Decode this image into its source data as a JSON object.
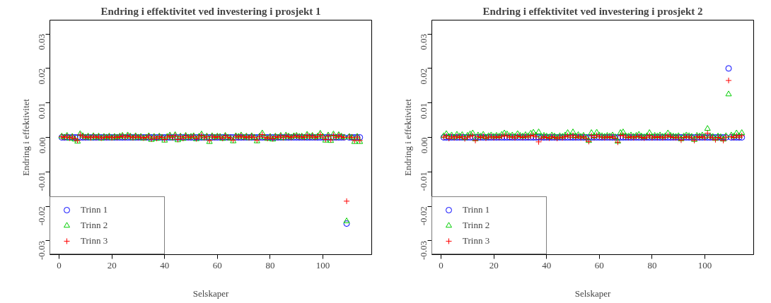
{
  "chart_data": [
    {
      "type": "scatter",
      "title": "Endring i effektivitet ved investering i prosjekt 1",
      "xlabel": "Selskaper",
      "ylabel": "Endring i effektivitet",
      "xlim": [
        -3.5,
        118.5
      ],
      "ylim": [
        -0.034,
        0.034
      ],
      "xticks": [
        0,
        20,
        40,
        60,
        80,
        100
      ],
      "yticks": [
        -0.03,
        -0.02,
        -0.01,
        {
          "value": 0,
          "label": "0.00"
        },
        0.01,
        0.02,
        0.03
      ],
      "grid": false,
      "legend": "bottom left",
      "x": [
        1,
        2,
        3,
        4,
        5,
        6,
        7,
        8,
        9,
        10,
        11,
        12,
        13,
        14,
        15,
        16,
        17,
        18,
        19,
        20,
        21,
        22,
        23,
        24,
        25,
        26,
        27,
        28,
        29,
        30,
        31,
        32,
        33,
        34,
        35,
        36,
        37,
        38,
        39,
        40,
        41,
        42,
        43,
        44,
        45,
        46,
        47,
        48,
        49,
        50,
        51,
        52,
        53,
        54,
        55,
        56,
        57,
        58,
        59,
        60,
        61,
        62,
        63,
        64,
        65,
        66,
        67,
        68,
        69,
        70,
        71,
        72,
        73,
        74,
        75,
        76,
        77,
        78,
        79,
        80,
        81,
        82,
        83,
        84,
        85,
        86,
        87,
        88,
        89,
        90,
        91,
        92,
        93,
        94,
        95,
        96,
        97,
        98,
        99,
        100,
        101,
        102,
        103,
        104,
        105,
        106,
        107,
        108,
        109,
        110,
        111,
        112,
        113,
        114
      ],
      "series": [
        {
          "name": "Trinn 1",
          "color": "#0000ff",
          "marker": "circle",
          "values": [
            0,
            0,
            0,
            0,
            0,
            0,
            0,
            0,
            0,
            0,
            0,
            0,
            0,
            0,
            0,
            0,
            0,
            0,
            0,
            0,
            0,
            0,
            0,
            0,
            0,
            0,
            0,
            0,
            0,
            0,
            0,
            0,
            0,
            0,
            0,
            0,
            0,
            0,
            0,
            0,
            0,
            0,
            0,
            0,
            0,
            0,
            0,
            0,
            0,
            0,
            0,
            0,
            0,
            0,
            0,
            0,
            0,
            0,
            0,
            0,
            0,
            0,
            0,
            0,
            0,
            0,
            0,
            0,
            0,
            0,
            0,
            0,
            0,
            0,
            0,
            0,
            0,
            0,
            0,
            0,
            0,
            0,
            0,
            0,
            0,
            0,
            0,
            0,
            0,
            0,
            0,
            0,
            0,
            0,
            0,
            0,
            0,
            0,
            0,
            0,
            0,
            0,
            0,
            0,
            0,
            0,
            0,
            0,
            -0.025,
            0,
            0,
            0,
            0,
            0
          ]
        },
        {
          "name": "Trinn 2",
          "color": "#00cd00",
          "marker": "triangle",
          "values": [
            0.0003,
            0,
            0.0005,
            -0.0003,
            0.0002,
            -0.0006,
            -0.0012,
            0.001,
            0.0004,
            0,
            0.0003,
            -0.0002,
            0.0004,
            0,
            0.0003,
            -0.0003,
            0.0002,
            0,
            0.0003,
            -0.0002,
            0.0002,
            0,
            0.0003,
            0.0005,
            0,
            0.0006,
            0.0003,
            -0.0002,
            0.0004,
            0,
            0.0002,
            -0.0003,
            0,
            0.0004,
            -0.0007,
            0.0002,
            -0.0004,
            0.0003,
            0,
            -0.0009,
            0.0002,
            0.0006,
            -0.0002,
            0.0007,
            -0.0008,
            0.0003,
            -0.0004,
            0.0005,
            0,
            0.0002,
            0.0004,
            -0.0005,
            0.0002,
            0.0009,
            -0.0002,
            0.0003,
            -0.0013,
            0.0004,
            0,
            0.0003,
            0.0002,
            -0.0004,
            0.0005,
            0,
            -0.0003,
            -0.0011,
            0.0004,
            0.0002,
            0.0006,
            0,
            0.0003,
            -0.0002,
            0.0004,
            0,
            -0.0011,
            0.0003,
            0.0012,
            0,
            -0.0004,
            0.0002,
            -0.0006,
            0.0003,
            0,
            0.0005,
            -0.0002,
            0.0006,
            0.0003,
            0,
            0.0004,
            0.0005,
            0.0002,
            0.0003,
            0,
            0.0008,
            0.0002,
            0.0005,
            0,
            0.0003,
            0.0011,
            0.0002,
            -0.0009,
            0.0006,
            -0.001,
            0.0009,
            0,
            0.0007,
            0.0003,
            0,
            -0.0243,
            0.0002,
            0,
            -0.0013,
            0.0002,
            -0.0013
          ]
        },
        {
          "name": "Trinn 3",
          "color": "#ff0000",
          "marker": "cross",
          "values": [
            0.0002,
            0,
            0.0003,
            -0.0002,
            0.0001,
            -0.0004,
            -0.0009,
            0.0007,
            0.0003,
            0,
            0.0002,
            -0.0001,
            0.0003,
            0,
            0.0002,
            -0.0002,
            0.0001,
            0,
            0.0002,
            -0.0001,
            0.0001,
            0,
            0.0002,
            0.0004,
            0,
            0.0004,
            0.0002,
            -0.0001,
            0.0003,
            0,
            0.0001,
            -0.0002,
            0,
            0.0003,
            -0.0005,
            0.0001,
            -0.0003,
            0.0002,
            0,
            -0.0006,
            0.0001,
            0.0004,
            -0.0001,
            0.0005,
            -0.0006,
            0.0002,
            -0.0003,
            0.0004,
            0,
            0.0001,
            0.0003,
            -0.0004,
            0.0001,
            0.0006,
            -0.0001,
            0.0002,
            -0.0009,
            0.0003,
            0,
            0.0002,
            0.0001,
            -0.0003,
            0.0004,
            0,
            -0.0002,
            -0.0008,
            0.0003,
            0.0001,
            0.0004,
            0,
            0.0002,
            -0.0001,
            0.0003,
            0,
            -0.0008,
            0.0002,
            0.0008,
            0,
            -0.0003,
            0.0001,
            -0.0004,
            0.0002,
            0,
            0.0004,
            -0.0001,
            0.0004,
            0.0002,
            0,
            0.0003,
            0.0004,
            0.0001,
            0.0002,
            0,
            0.0006,
            0.0001,
            0.0004,
            0,
            0.0002,
            0.0008,
            0.0001,
            -0.0006,
            0.0004,
            -0.0007,
            0.0006,
            0,
            0.0005,
            0.0002,
            0,
            -0.0185,
            0.0001,
            0,
            -0.0009,
            0.0001,
            -0.0009
          ]
        }
      ]
    },
    {
      "type": "scatter",
      "title": "Endring i effektivitet ved investering i prosjekt 2",
      "xlabel": "Selskaper",
      "ylabel": "Endring i effektivitet",
      "xlim": [
        -3.5,
        118.5
      ],
      "ylim": [
        -0.034,
        0.034
      ],
      "xticks": [
        0,
        20,
        40,
        60,
        80,
        100
      ],
      "yticks": [
        -0.03,
        -0.02,
        -0.01,
        {
          "value": 0,
          "label": "0.00"
        },
        0.01,
        0.02,
        0.03
      ],
      "grid": false,
      "legend": "bottom left",
      "x": [
        1,
        2,
        3,
        4,
        5,
        6,
        7,
        8,
        9,
        10,
        11,
        12,
        13,
        14,
        15,
        16,
        17,
        18,
        19,
        20,
        21,
        22,
        23,
        24,
        25,
        26,
        27,
        28,
        29,
        30,
        31,
        32,
        33,
        34,
        35,
        36,
        37,
        38,
        39,
        40,
        41,
        42,
        43,
        44,
        45,
        46,
        47,
        48,
        49,
        50,
        51,
        52,
        53,
        54,
        55,
        56,
        57,
        58,
        59,
        60,
        61,
        62,
        63,
        64,
        65,
        66,
        67,
        68,
        69,
        70,
        71,
        72,
        73,
        74,
        75,
        76,
        77,
        78,
        79,
        80,
        81,
        82,
        83,
        84,
        85,
        86,
        87,
        88,
        89,
        90,
        91,
        92,
        93,
        94,
        95,
        96,
        97,
        98,
        99,
        100,
        101,
        102,
        103,
        104,
        105,
        106,
        107,
        108,
        109,
        110,
        111,
        112,
        113,
        114
      ],
      "series": [
        {
          "name": "Trinn 1",
          "color": "#0000ff",
          "marker": "circle",
          "values": [
            0,
            0,
            0,
            0,
            0,
            0,
            0,
            0,
            0,
            0,
            0,
            0,
            0,
            0,
            0,
            0,
            0,
            0,
            0,
            0,
            0,
            0,
            0,
            0,
            0,
            0,
            0,
            0,
            0,
            0,
            0,
            0,
            0,
            0,
            0,
            0,
            0,
            0,
            0,
            0,
            0,
            0,
            0,
            0,
            0,
            0,
            0,
            0,
            0,
            0,
            0,
            0,
            0,
            0,
            0,
            0,
            0,
            0,
            0,
            0,
            0,
            0,
            0,
            0,
            0,
            0,
            0,
            0,
            0,
            0,
            0,
            0,
            0,
            0,
            0,
            0,
            0,
            0,
            0,
            0,
            0,
            0,
            0,
            0,
            0,
            0,
            0,
            0,
            0,
            0,
            0,
            0,
            0,
            0,
            0,
            0,
            0,
            0,
            0,
            0,
            0,
            0,
            0,
            0,
            0,
            0,
            0,
            0,
            0.02,
            0,
            0,
            0,
            0,
            0
          ]
        },
        {
          "name": "Trinn 2",
          "color": "#00cd00",
          "marker": "triangle",
          "values": [
            0.0004,
            0.001,
            0.0002,
            0.0006,
            0,
            0.0008,
            0.0003,
            0.0007,
            -0.0002,
            0.0005,
            0.0009,
            0.0012,
            -0.0005,
            0.0006,
            0.0003,
            0.0008,
            0,
            0.0004,
            0.0006,
            0.0002,
            0.0005,
            0.0003,
            0.0008,
            0.0012,
            0.0009,
            0.0004,
            0.0006,
            0.0002,
            0.001,
            0.0005,
            0.0003,
            0.0007,
            0.0004,
            0.0011,
            0.0014,
            0.0006,
            0.0015,
            0.0002,
            0.0005,
            0.0003,
            0.0001,
            0.0006,
            0.0003,
            0,
            0.0004,
            0.0002,
            0.0006,
            0.0013,
            0.0004,
            0.0015,
            0.0003,
            0.0007,
            0.0002,
            0.0005,
            0,
            -0.001,
            0.0013,
            0.0003,
            0.0014,
            0.0006,
            0.0004,
            0.0002,
            0.0005,
            0.0003,
            0.0006,
            0.0001,
            -0.0012,
            0.0013,
            0.0015,
            0.0004,
            0.0003,
            0.0006,
            0.0002,
            0.0005,
            0.0008,
            0.0003,
            0.0001,
            0.0004,
            0.0013,
            0.0002,
            0.0005,
            0.0003,
            0.0006,
            0.0002,
            0.0004,
            0.0012,
            0.0005,
            0.0003,
            0.0002,
            0.0004,
            -0.0005,
            0.0003,
            0.0006,
            0.0004,
            0.0002,
            -0.0007,
            0.0005,
            0.0003,
            0.0006,
            0.0002,
            0.0025,
            0.0004,
            0.0002,
            -0.0004,
            0.0003,
            0.0001,
            -0.0006,
            0.0004,
            0.0125,
            0.0006,
            0.0003,
            0.0012,
            0.0004,
            0.0013
          ]
        },
        {
          "name": "Trinn 3",
          "color": "#ff0000",
          "marker": "cross",
          "values": [
            0.0001,
            0.0004,
            -0.0003,
            0.0002,
            -0.0001,
            0.0003,
            0,
            0.0002,
            -0.0004,
            0.0001,
            0.0003,
            0.0005,
            -0.0009,
            0.0002,
            0,
            0.0003,
            -0.0002,
            0.0001,
            0.0002,
            -0.0001,
            0.0002,
            0,
            0.0003,
            0.0005,
            0.0004,
            0.0001,
            0.0002,
            -0.0001,
            0.0004,
            0.0002,
            0,
            0.0003,
            0.0001,
            0.0004,
            0.0006,
            0.0002,
            -0.0013,
            -0.0002,
            0.0002,
            0,
            -0.0002,
            0.0002,
            0,
            -0.0003,
            0.0001,
            -0.0001,
            0.0002,
            0.0005,
            0.0001,
            0.0006,
            0,
            0.0003,
            -0.0001,
            0.0002,
            -0.0003,
            -0.0012,
            0.0005,
            0,
            0.0006,
            0.0002,
            0.0001,
            -0.0001,
            0.0002,
            0,
            0.0002,
            -0.0002,
            -0.0014,
            0.0005,
            0.0006,
            0.0001,
            0,
            0.0002,
            -0.0001,
            0.0002,
            0.0003,
            0,
            -0.0002,
            0.0001,
            0.0005,
            -0.0001,
            0.0002,
            0,
            0.0002,
            -0.0001,
            0.0001,
            0.0005,
            0.0002,
            0,
            -0.0001,
            0.0001,
            -0.0008,
            0,
            0.0002,
            0.0001,
            -0.0001,
            -0.0009,
            0.0002,
            0,
            0.0002,
            -0.0001,
            0.0012,
            0.0001,
            -0.0001,
            -0.0007,
            0,
            -0.0002,
            -0.0009,
            0.0001,
            0.0165,
            0.0002,
            0,
            0.0005,
            0.0001,
            0.0005
          ]
        }
      ]
    }
  ]
}
